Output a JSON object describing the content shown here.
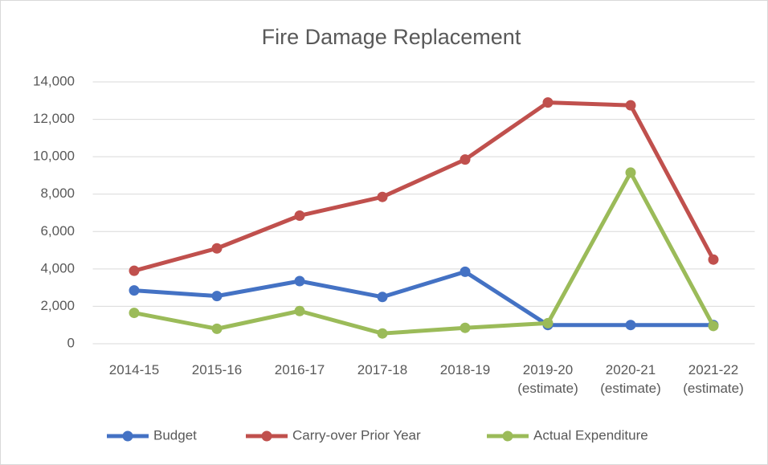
{
  "chart_data": {
    "type": "line",
    "title": "Fire Damage Replacement",
    "categories": [
      "2014-15",
      "2015-16",
      "2016-17",
      "2017-18",
      "2018-19",
      "2019-20\n(estimate)",
      "2020-21\n(estimate)",
      "2021-22\n(estimate)"
    ],
    "series": [
      {
        "name": "Budget",
        "color": "#4472c4",
        "values": [
          2850,
          2550,
          3350,
          2500,
          3850,
          1000,
          1000,
          1000
        ]
      },
      {
        "name": "Carry-over Prior Year",
        "color": "#c0504d",
        "values": [
          3900,
          5100,
          6850,
          7850,
          9850,
          12900,
          12750,
          4500
        ]
      },
      {
        "name": "Actual Expenditure",
        "color": "#9bbb59",
        "values": [
          1650,
          800,
          1750,
          550,
          850,
          1100,
          9150,
          950
        ]
      }
    ],
    "ylim": [
      0,
      14000
    ],
    "yticks": [
      0,
      {
        "value": 2000,
        "label": "2,000"
      },
      {
        "value": 4000,
        "label": "4,000"
      },
      {
        "value": 6000,
        "label": "6,000"
      },
      {
        "value": 8000,
        "label": "8,000"
      },
      {
        "value": 10000,
        "label": "10,000"
      },
      {
        "value": 12000,
        "label": "12,000"
      },
      {
        "value": 14000,
        "label": "14,000"
      }
    ],
    "grid": true,
    "legend": "bottom"
  }
}
